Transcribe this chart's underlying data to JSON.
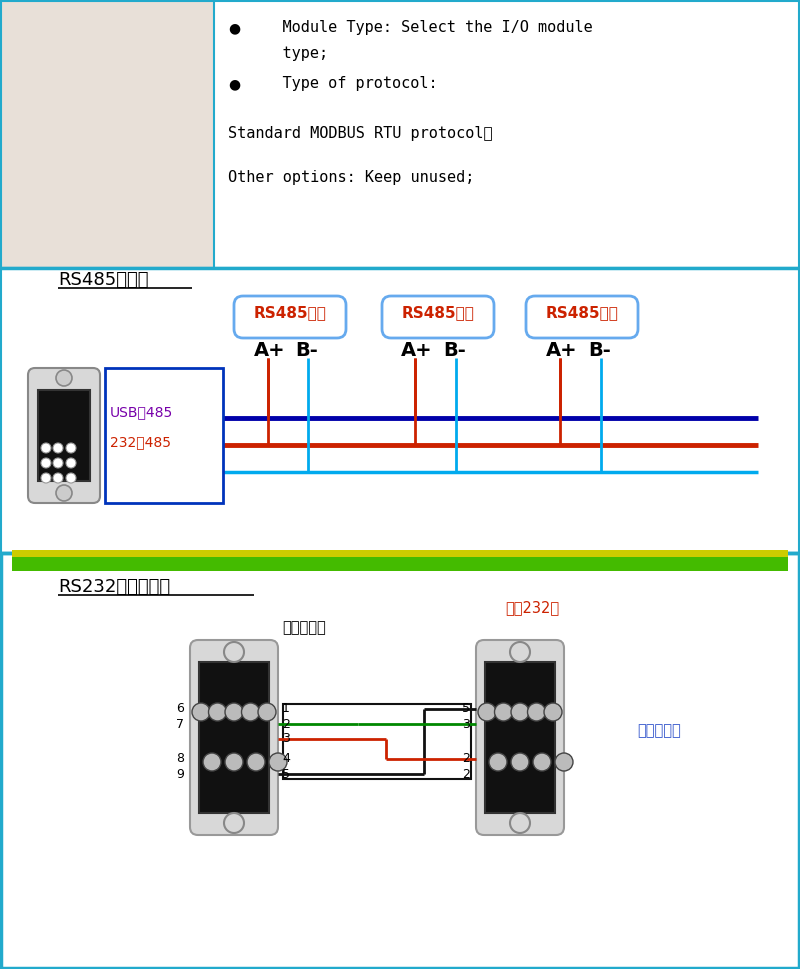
{
  "bg": "#ffffff",
  "border": "#22aacc",
  "top_left_bg": "#e8e0d8",
  "line1a": "    Module Type: Select the I/O module",
  "line1b": "    type;",
  "line2": "    Type of protocol:",
  "line3": "Standard MODBUS RTU protocol；",
  "line4": "Other options: Keep unused;",
  "rs485_title": "RS485接线图",
  "mod_labels": [
    "RS485模块",
    "RS485模块",
    "RS485模块"
  ],
  "usb_label": "USB转485",
  "rs232_485": "232转485",
  "sep_green": "#44bb00",
  "sep_yellow": "#cccc00",
  "rs232_title": "RS232接线示意图",
  "pc_label": "电脑端接口",
  "mod232_label": "模块232口",
  "cross_label": "交叉线串口",
  "navy": "#0000aa",
  "dark_red": "#cc2200",
  "cyan_wire": "#00aaee",
  "green_wire": "#008800",
  "red_wire": "#cc2200",
  "black_wire": "#111111",
  "blue_label": "#3355cc",
  "purple": "#7700aa"
}
